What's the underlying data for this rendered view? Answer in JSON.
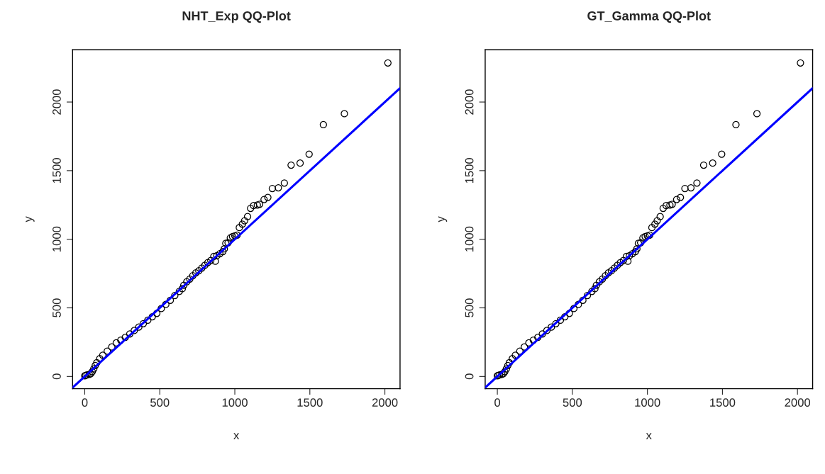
{
  "chart_data": [
    {
      "type": "scatter",
      "title": "NHT_Exp QQ-Plot",
      "xlabel": "x",
      "ylabel": "y",
      "xlim": [
        -81,
        2101
      ],
      "ylim": [
        -89,
        2381
      ],
      "xticks": [
        0,
        500,
        1000,
        1500,
        2000
      ],
      "yticks": [
        0,
        500,
        1000,
        1500,
        2000
      ],
      "grid": false,
      "series": [
        {
          "marker": "circle",
          "color": "#000000",
          "x": [
            0,
            5,
            15,
            30,
            40,
            50,
            60,
            70,
            80,
            100,
            120,
            150,
            180,
            210,
            240,
            270,
            300,
            330,
            360,
            390,
            420,
            450,
            480,
            510,
            540,
            570,
            600,
            630,
            650,
            660,
            680,
            700,
            720,
            740,
            760,
            780,
            800,
            820,
            840,
            860,
            870,
            880,
            900,
            920,
            930,
            940,
            955,
            970,
            985,
            1000,
            1015,
            1030,
            1050,
            1065,
            1085,
            1105,
            1125,
            1150,
            1165,
            1195,
            1220,
            1250,
            1290,
            1330,
            1375,
            1435,
            1495,
            1590,
            1730,
            2020
          ],
          "values": [
            5,
            8,
            12,
            15,
            20,
            35,
            55,
            80,
            100,
            130,
            155,
            185,
            215,
            245,
            265,
            285,
            310,
            335,
            360,
            385,
            410,
            435,
            460,
            495,
            525,
            555,
            590,
            620,
            640,
            665,
            690,
            710,
            735,
            755,
            770,
            790,
            810,
            830,
            845,
            875,
            840,
            880,
            895,
            910,
            930,
            970,
            975,
            1010,
            1020,
            1025,
            1030,
            1085,
            1110,
            1135,
            1165,
            1225,
            1245,
            1250,
            1255,
            1290,
            1305,
            1370,
            1375,
            1410,
            1540,
            1555,
            1620,
            1835,
            1915,
            2285
          ]
        },
        {
          "type": "line",
          "color": "#0000ff",
          "x": [
            -81,
            2101
          ],
          "values": [
            -81,
            2101
          ]
        }
      ]
    },
    {
      "type": "scatter",
      "title": "GT_Gamma QQ-Plot",
      "xlabel": "x",
      "ylabel": "y",
      "xlim": [
        -81,
        2101
      ],
      "ylim": [
        -89,
        2381
      ],
      "xticks": [
        0,
        500,
        1000,
        1500,
        2000
      ],
      "yticks": [
        0,
        500,
        1000,
        1500,
        2000
      ],
      "grid": false,
      "series": [
        {
          "marker": "circle",
          "color": "#000000",
          "x": [
            0,
            5,
            15,
            30,
            40,
            50,
            60,
            70,
            80,
            100,
            120,
            150,
            180,
            210,
            240,
            270,
            300,
            330,
            360,
            390,
            420,
            450,
            480,
            510,
            540,
            570,
            600,
            630,
            650,
            660,
            680,
            700,
            720,
            740,
            760,
            780,
            800,
            820,
            840,
            860,
            870,
            880,
            900,
            920,
            930,
            940,
            955,
            970,
            985,
            1000,
            1015,
            1030,
            1050,
            1065,
            1085,
            1105,
            1125,
            1150,
            1165,
            1195,
            1220,
            1250,
            1290,
            1330,
            1375,
            1435,
            1495,
            1590,
            1730,
            2020
          ],
          "values": [
            5,
            8,
            12,
            15,
            20,
            35,
            55,
            80,
            100,
            130,
            155,
            185,
            215,
            245,
            265,
            285,
            310,
            335,
            360,
            385,
            410,
            435,
            460,
            495,
            525,
            555,
            590,
            620,
            640,
            665,
            690,
            710,
            735,
            755,
            770,
            790,
            810,
            830,
            845,
            875,
            840,
            880,
            895,
            910,
            930,
            970,
            975,
            1010,
            1020,
            1025,
            1030,
            1085,
            1110,
            1135,
            1165,
            1225,
            1245,
            1250,
            1255,
            1290,
            1305,
            1370,
            1375,
            1410,
            1540,
            1555,
            1620,
            1835,
            1915,
            2285
          ]
        },
        {
          "type": "line",
          "color": "#0000ff",
          "x": [
            -81,
            2101
          ],
          "values": [
            -81,
            2101
          ]
        }
      ]
    }
  ]
}
